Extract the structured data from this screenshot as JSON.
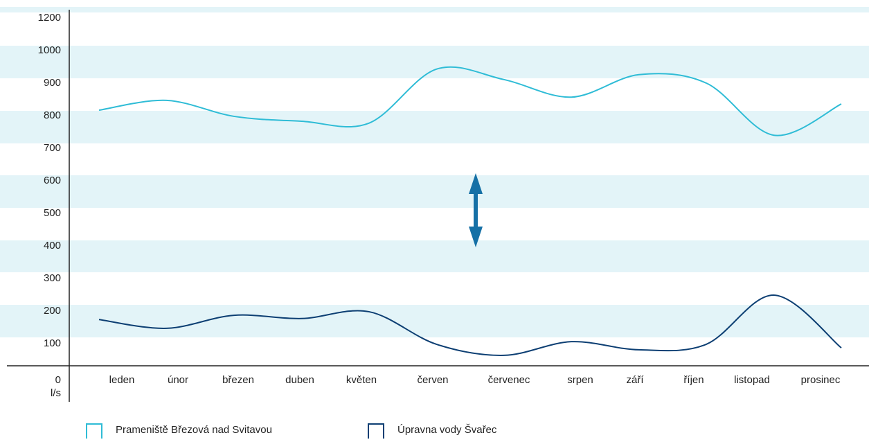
{
  "chart_data": {
    "type": "line",
    "unit_label": "l/s",
    "categories": [
      "leden",
      "únor",
      "březen",
      "duben",
      "květen",
      "červen",
      "červenec",
      "srpen",
      "září",
      "říjen",
      "listopad",
      "prosinec"
    ],
    "series": [
      {
        "name": "Prameniště Březová nad Svitavou",
        "color": "#2fbcd6",
        "values": [
          817,
          847,
          798,
          783,
          777,
          943,
          911,
          857,
          926,
          900,
          740,
          836
        ]
      },
      {
        "name": "Úpravna vody Švařec",
        "color": "#0d3f73",
        "values": [
          174,
          147,
          187,
          177,
          198,
          98,
          64,
          106,
          81,
          98,
          249,
          87
        ]
      }
    ],
    "yticks": [
      0,
      100,
      200,
      300,
      400,
      500,
      600,
      700,
      800,
      900,
      1000,
      1200
    ]
  }
}
